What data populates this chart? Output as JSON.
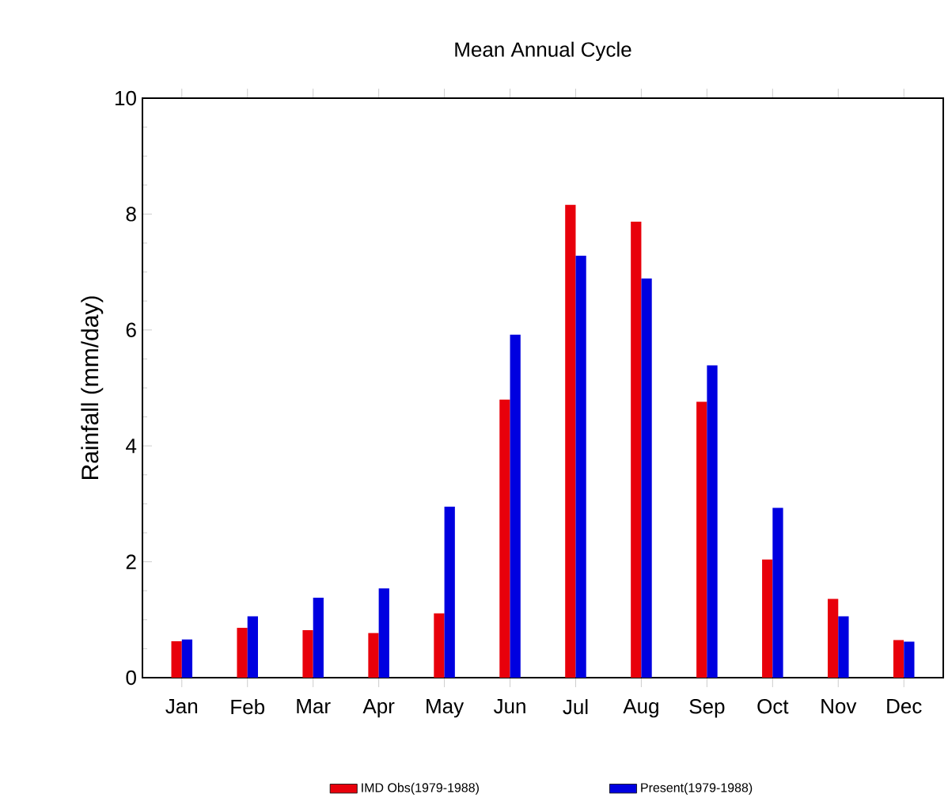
{
  "chart_data": {
    "type": "bar",
    "title": "Mean Annual Cycle",
    "ylabel": "Rainfall (mm/day)",
    "categories": [
      "Jan",
      "Feb",
      "Mar",
      "Apr",
      "May",
      "Jun",
      "Jul",
      "Aug",
      "Sep",
      "Oct",
      "Nov",
      "Dec"
    ],
    "series": [
      {
        "name": "IMD Obs(1979-1988)",
        "color": "#e8000b",
        "values": [
          0.63,
          0.86,
          0.82,
          0.77,
          1.11,
          4.8,
          8.16,
          7.87,
          4.76,
          2.04,
          1.36,
          0.65
        ]
      },
      {
        "name": "Present(1979-1988)",
        "color": "#0000e0",
        "values": [
          0.66,
          1.06,
          1.38,
          1.54,
          2.95,
          5.92,
          7.28,
          6.89,
          5.39,
          2.93,
          1.06,
          0.62
        ]
      }
    ],
    "ylim": [
      0,
      10
    ],
    "yticks": [
      0,
      2,
      4,
      6,
      8,
      10
    ],
    "grid": false,
    "legend": "bottom"
  }
}
